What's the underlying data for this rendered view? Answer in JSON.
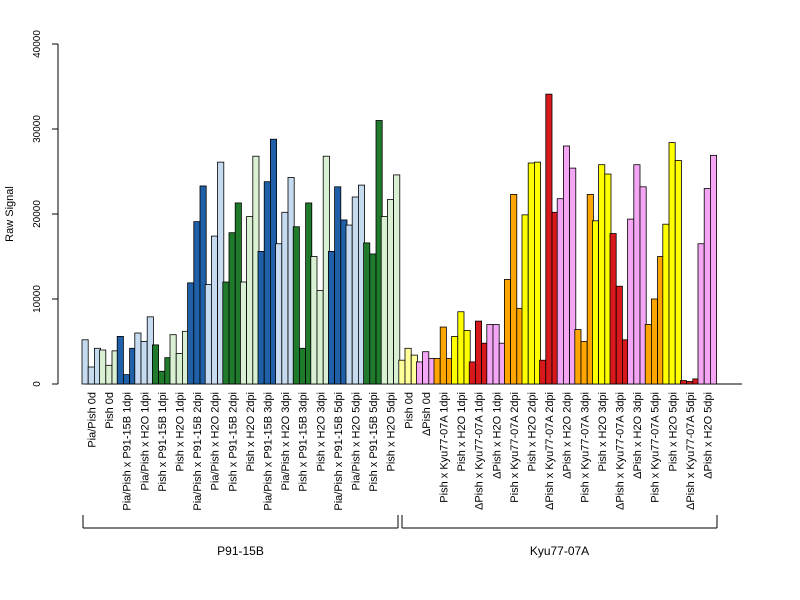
{
  "chart_data": {
    "type": "bar",
    "ylabel": "Raw Signal",
    "ylim": [
      0,
      40000
    ],
    "yticks": [
      0,
      10000,
      20000,
      30000,
      40000
    ],
    "grid": false,
    "colors": {
      "light_blue": "#c6dbef",
      "dark_blue": "#2060a8",
      "dark_green": "#1f7a2c",
      "light_green": "#d9f0d3",
      "light_yellow": "#ffff99",
      "yellow": "#ffff00",
      "orange": "#ffa500",
      "red": "#d7191c",
      "pink": "#f4a6f4"
    },
    "categories": [
      {
        "label": "Pia/Pish 0d",
        "color": "light_blue",
        "values": [
          5200,
          2000,
          4200
        ]
      },
      {
        "label": "Pish 0d",
        "color": "light_green",
        "values": [
          4000,
          2200,
          3900
        ]
      },
      {
        "label": "Pia/Pish x P91-15B 1dpi",
        "color": "dark_blue",
        "values": [
          5600,
          1100,
          4200
        ]
      },
      {
        "label": "Pia/Pish x H2O 1dpi",
        "color": "light_blue",
        "values": [
          6000,
          5000,
          7900
        ]
      },
      {
        "label": "Pish x P91-15B 1dpi",
        "color": "dark_green",
        "values": [
          4600,
          1500,
          3100
        ]
      },
      {
        "label": "Pish x H2O 1dpi",
        "color": "light_green",
        "values": [
          5800,
          3600,
          6200
        ]
      },
      {
        "label": "Pia/Pish x P91-15B 2dpi",
        "color": "dark_blue",
        "values": [
          11900,
          19100,
          23300
        ]
      },
      {
        "label": "Pia/Pish x H2O 2dpi",
        "color": "light_blue",
        "values": [
          11700,
          17400,
          26100
        ]
      },
      {
        "label": "Pish x P91-15B 2dpi",
        "color": "dark_green",
        "values": [
          12000,
          17800,
          21300
        ]
      },
      {
        "label": "Pish x H2O 2dpi",
        "color": "light_green",
        "values": [
          12000,
          19700,
          26800
        ]
      },
      {
        "label": "Pia/Pish x P91-15B 3dpi",
        "color": "dark_blue",
        "values": [
          15600,
          23800,
          28800
        ]
      },
      {
        "label": "Pia/Pish x H2O 3dpi",
        "color": "light_blue",
        "values": [
          16500,
          20200,
          24300
        ]
      },
      {
        "label": "Pish x P91-15B 3dpi",
        "color": "dark_green",
        "values": [
          18500,
          4200,
          21300
        ]
      },
      {
        "label": "Pish x H2O 3dpi",
        "color": "light_green",
        "values": [
          15000,
          11000,
          26800
        ]
      },
      {
        "label": "Pia/Pish x P91-15B 5dpi",
        "color": "dark_blue",
        "values": [
          15600,
          23200,
          19300
        ]
      },
      {
        "label": "Pia/Pish x H2O 5dpi",
        "color": "light_blue",
        "values": [
          18700,
          22000,
          23400
        ]
      },
      {
        "label": "Pish x P91-15B 5dpi",
        "color": "dark_green",
        "values": [
          16600,
          15300,
          31000
        ]
      },
      {
        "label": "Pish x H2O 5dpi",
        "color": "light_green",
        "values": [
          19700,
          21700,
          24600
        ]
      },
      {
        "label": "Pish 0d",
        "color": "light_yellow",
        "values": [
          2800,
          4200,
          3400
        ]
      },
      {
        "label": "ΔPish 0d",
        "color": "pink",
        "values": [
          2600,
          3800,
          3000
        ]
      },
      {
        "label": "Pish x Kyu77-07A 1dpi",
        "color": "orange",
        "values": [
          3000,
          6700,
          3000
        ]
      },
      {
        "label": "Pish x H2O 1dpi",
        "color": "yellow",
        "values": [
          5600,
          8500,
          6300
        ]
      },
      {
        "label": "ΔPish x Kyu77-07A 1dpi",
        "color": "red",
        "values": [
          2600,
          7400,
          4800
        ]
      },
      {
        "label": "ΔPish x H2O 1dpi",
        "color": "pink",
        "values": [
          7000,
          7000,
          4800
        ]
      },
      {
        "label": "Pish x Kyu77-07A 2dpi",
        "color": "orange",
        "values": [
          12300,
          22300,
          8900
        ]
      },
      {
        "label": "Pish x H2O 2dpi",
        "color": "yellow",
        "values": [
          19900,
          26000,
          26100
        ]
      },
      {
        "label": "ΔPish x Kyu77-07A 2dpi",
        "color": "red",
        "values": [
          2800,
          34100,
          20200
        ]
      },
      {
        "label": "ΔPish x H2O 2dpi",
        "color": "pink",
        "values": [
          21800,
          28000,
          25400
        ]
      },
      {
        "label": "Pish x Kyu77-07A 3dpi",
        "color": "orange",
        "values": [
          6400,
          5000,
          22300
        ]
      },
      {
        "label": "Pish x H2O 3dpi",
        "color": "yellow",
        "values": [
          19200,
          25800,
          24700
        ]
      },
      {
        "label": "ΔPish x Kyu77-07A 3dpi",
        "color": "red",
        "values": [
          17700,
          11500,
          5200
        ]
      },
      {
        "label": "ΔPish x H2O 3dpi",
        "color": "pink",
        "values": [
          19400,
          25800,
          23200
        ]
      },
      {
        "label": "Pish x Kyu77-07A 5dpi",
        "color": "orange",
        "values": [
          7000,
          10000,
          15000
        ]
      },
      {
        "label": "Pish x H2O 5dpi",
        "color": "yellow",
        "values": [
          18800,
          28400,
          26300
        ]
      },
      {
        "label": "ΔPish x Kyu77-07A 5dpi",
        "color": "red",
        "values": [
          400,
          300,
          600
        ]
      },
      {
        "label": "ΔPish x H2O 5dpi",
        "color": "pink",
        "values": [
          16500,
          23000,
          26900
        ]
      }
    ],
    "groups": [
      {
        "label": "P91-15B",
        "from": 0,
        "to": 17
      },
      {
        "label": "Kyu77-07A",
        "from": 18,
        "to": 35
      }
    ]
  }
}
